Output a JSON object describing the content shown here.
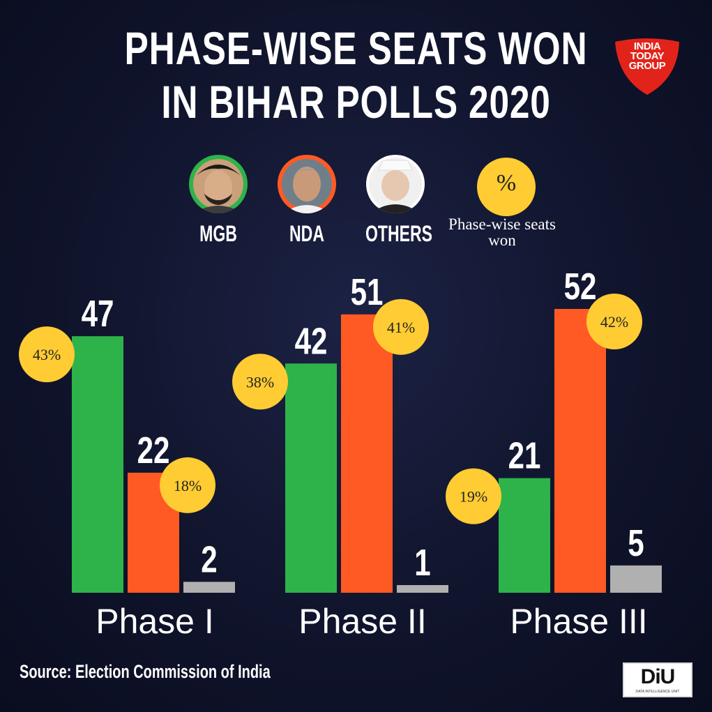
{
  "title_line1": "PHASE-WISE SEATS WON",
  "title_line2": "IN BIHAR POLLS 2020",
  "logo": {
    "text": "INDIA TODAY GROUP",
    "color": "#e2231a"
  },
  "legend": [
    {
      "label": "MGB",
      "color": "#2db34a",
      "icon": "person-photo-icon"
    },
    {
      "label": "NDA",
      "color": "#ff5a23",
      "icon": "person-photo-icon"
    },
    {
      "label": "OTHERS",
      "color": "#bdbdbd",
      "icon": "person-photo-icon"
    },
    {
      "label": "Phase-wise seats won",
      "symbol": "%",
      "color": "#ffcc33"
    }
  ],
  "chart_data": {
    "type": "bar",
    "categories": [
      "Phase I",
      "Phase II",
      "Phase III"
    ],
    "series": [
      {
        "name": "MGB",
        "color": "#2db34a",
        "values": [
          47,
          42,
          21
        ]
      },
      {
        "name": "NDA",
        "color": "#ff5a23",
        "values": [
          22,
          51,
          52
        ]
      },
      {
        "name": "OTHERS",
        "color": "#b0b0b0",
        "values": [
          2,
          1,
          5
        ]
      }
    ],
    "percent_labels": [
      {
        "category": "Phase I",
        "series": "MGB",
        "text": "43%"
      },
      {
        "category": "Phase I",
        "series": "NDA",
        "text": "18%"
      },
      {
        "category": "Phase II",
        "series": "MGB",
        "text": "38%"
      },
      {
        "category": "Phase II",
        "series": "NDA",
        "text": "41%"
      },
      {
        "category": "Phase III",
        "series": "MGB",
        "text": "19%"
      },
      {
        "category": "Phase III",
        "series": "NDA",
        "text": "42%"
      }
    ],
    "ylim": [
      0,
      52
    ],
    "grid": false
  },
  "source": "Source: Election Commission of India",
  "footer_logo": {
    "text": "DiU",
    "subtext": "DATA INTELLIGENCE UNIT"
  }
}
